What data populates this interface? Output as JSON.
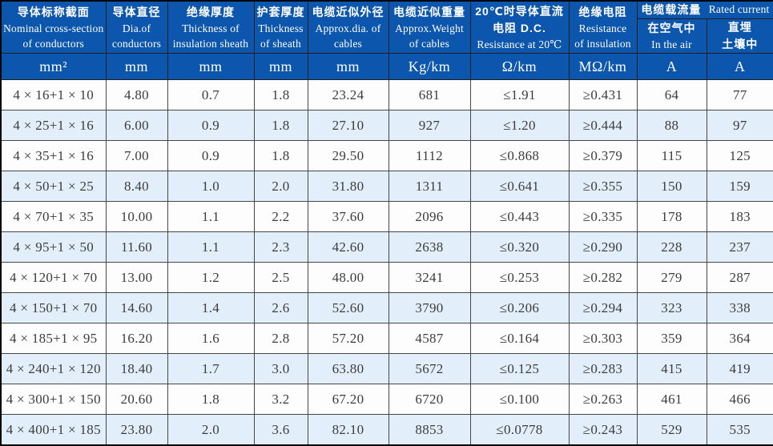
{
  "colors": {
    "header_bg": "#0c56ae",
    "alt_row": "#e2effa"
  },
  "table": {
    "columns": [
      {
        "line1": "导体标称截面",
        "line2": "Nominal cross-section",
        "line3": "of conductors",
        "unit": "mm²"
      },
      {
        "line1": "导体直径",
        "line2": "Dia.of",
        "line3": "conductors",
        "unit": "mm"
      },
      {
        "line1": "绝缘厚度",
        "line2": "Thickness of",
        "line3": "insulation sheath",
        "unit": "mm"
      },
      {
        "line1": "护套厚度",
        "line2": "Thickness",
        "line3": "of sheath",
        "unit": "mm"
      },
      {
        "line1": "电缆近似外径",
        "line2": "Approx.dia. of",
        "line3": "cables",
        "unit": "mm"
      },
      {
        "line1": "电缆近似重量",
        "line2": "Approx.Weight",
        "line3": "of cables",
        "unit": "Kg/km"
      },
      {
        "line1": "20℃时导体直流",
        "line2": "电阻 D.C.",
        "line3": "Resistance at 20℃",
        "unit": "Ω/km"
      },
      {
        "line1": "绝缘电阻",
        "line2": "Resistance",
        "line3": "of insulation",
        "unit": "MΩ/km"
      }
    ],
    "group": {
      "zh": "电缆载流量",
      "en": "Rated current",
      "sub": [
        {
          "line1": "在空气中",
          "line2": "In the air",
          "unit": "A"
        },
        {
          "line1": "直埋",
          "line2": "土壤中",
          "unit": "A"
        }
      ]
    },
    "rows": [
      [
        "4 × 16+1 × 10",
        "4.80",
        "0.7",
        "1.8",
        "23.24",
        "681",
        "≤1.91",
        "≥0.431",
        "64",
        "77"
      ],
      [
        "4 × 25+1 × 16",
        "6.00",
        "0.9",
        "1.8",
        "27.10",
        "927",
        "≤1.20",
        "≥0.444",
        "88",
        "97"
      ],
      [
        "4 × 35+1 × 16",
        "7.00",
        "0.9",
        "1.8",
        "29.50",
        "1112",
        "≤0.868",
        "≥0.379",
        "115",
        "125"
      ],
      [
        "4 × 50+1 × 25",
        "8.40",
        "1.0",
        "2.0",
        "31.80",
        "1311",
        "≤0.641",
        "≥0.355",
        "150",
        "159"
      ],
      [
        "4 × 70+1 × 35",
        "10.00",
        "1.1",
        "2.2",
        "37.60",
        "2096",
        "≤0.443",
        "≥0.335",
        "178",
        "183"
      ],
      [
        "4 × 95+1 × 50",
        "11.60",
        "1.1",
        "2.3",
        "42.60",
        "2638",
        "≤0.320",
        "≥0.290",
        "228",
        "237"
      ],
      [
        "4 × 120+1 × 70",
        "13.00",
        "1.2",
        "2.5",
        "48.00",
        "3241",
        "≤0.253",
        "≥0.282",
        "279",
        "287"
      ],
      [
        "4 × 150+1 × 70",
        "14.60",
        "1.4",
        "2.6",
        "52.60",
        "3790",
        "≤0.206",
        "≥0.294",
        "323",
        "338"
      ],
      [
        "4 × 185+1 × 95",
        "16.20",
        "1.6",
        "2.8",
        "57.20",
        "4587",
        "≤0.164",
        "≥0.303",
        "359",
        "364"
      ],
      [
        "4 × 240+1 × 120",
        "18.40",
        "1.7",
        "3.0",
        "63.80",
        "5672",
        "≤0.125",
        "≥0.283",
        "415",
        "419"
      ],
      [
        "4 × 300+1 × 150",
        "20.60",
        "1.8",
        "3.2",
        "67.20",
        "6720",
        "≤0.100",
        "≥0.263",
        "461",
        "466"
      ],
      [
        "4 × 400+1 × 185",
        "23.80",
        "2.0",
        "3.6",
        "82.10",
        "8853",
        "≤0.0778",
        "≥0.243",
        "529",
        "535"
      ]
    ]
  }
}
